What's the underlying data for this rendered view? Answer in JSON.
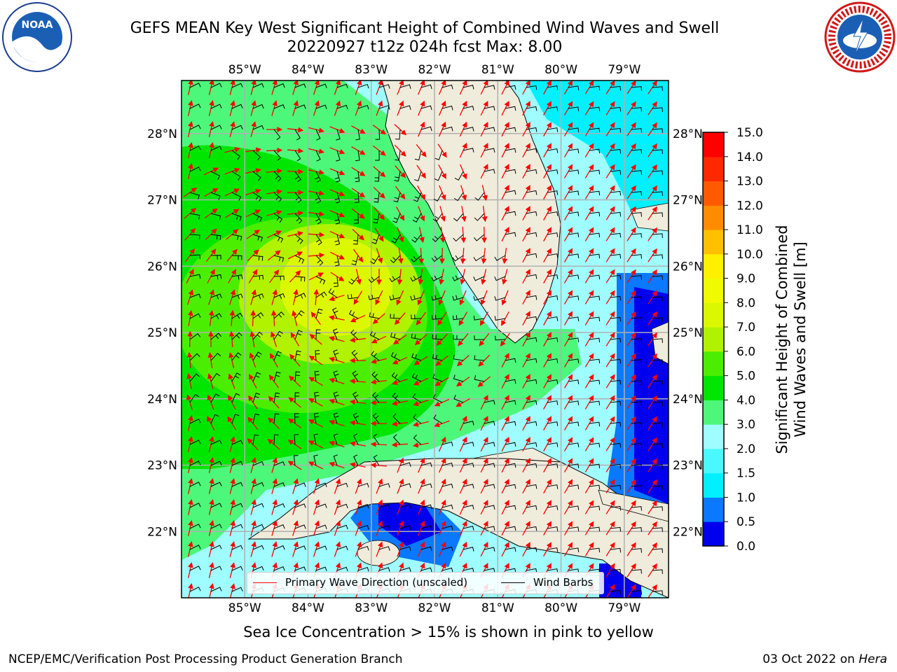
{
  "header": {
    "title_line1": "GEFS MEAN Key West Significant Height of Combined Wind Waves and Swell",
    "title_line2": "20220927 t12z 024h fcst   Max: 8.00"
  },
  "logos": {
    "left": "noaa-logo",
    "right": "nws-logo"
  },
  "map": {
    "lon_labels": [
      "85°W",
      "84°W",
      "83°W",
      "82°W",
      "81°W",
      "80°W",
      "79°W"
    ],
    "lat_labels": [
      "28°N",
      "27°N",
      "26°N",
      "25°N",
      "24°N",
      "23°N",
      "22°N"
    ],
    "lon_range": [
      -86.0,
      -78.3
    ],
    "lat_range": [
      21.0,
      28.8
    ],
    "land_color": "#efecdc",
    "grid": true
  },
  "colorbar": {
    "title": "Significant Height of Combined Wind Waves and Swell [m]",
    "title_lines": [
      "Significant Height of Combined",
      "Wind Waves and Swell [m]"
    ],
    "ticks": [
      "0.0",
      "0.5",
      "1.0",
      "1.5",
      "2.0",
      "3.0",
      "4.0",
      "5.0",
      "6.0",
      "7.0",
      "8.0",
      "9.0",
      "10.0",
      "11.0",
      "12.0",
      "13.0",
      "14.0",
      "15.0"
    ],
    "colors": [
      "#0000ee",
      "#0a78ff",
      "#00f0ff",
      "#4af8ff",
      "#9ffcff",
      "#4df77a",
      "#00e600",
      "#4cee00",
      "#b0f200",
      "#dcf800",
      "#f0fa00",
      "#fff000",
      "#ffc000",
      "#ff8c00",
      "#ff5a00",
      "#ff2800",
      "#ff0000"
    ]
  },
  "legend": {
    "wave_label": "Primary Wave Direction (unscaled)",
    "wave_color": "#ff0000",
    "barb_label": "Wind Barbs",
    "barb_color": "#000000"
  },
  "footer": {
    "note": "Sea Ice Concentration > 15% is shown in pink to yellow",
    "credit": "NCEP/EMC/Verification Post Processing Product Generation Branch",
    "date": "03 Oct 2022 on ",
    "host": "Hera"
  }
}
